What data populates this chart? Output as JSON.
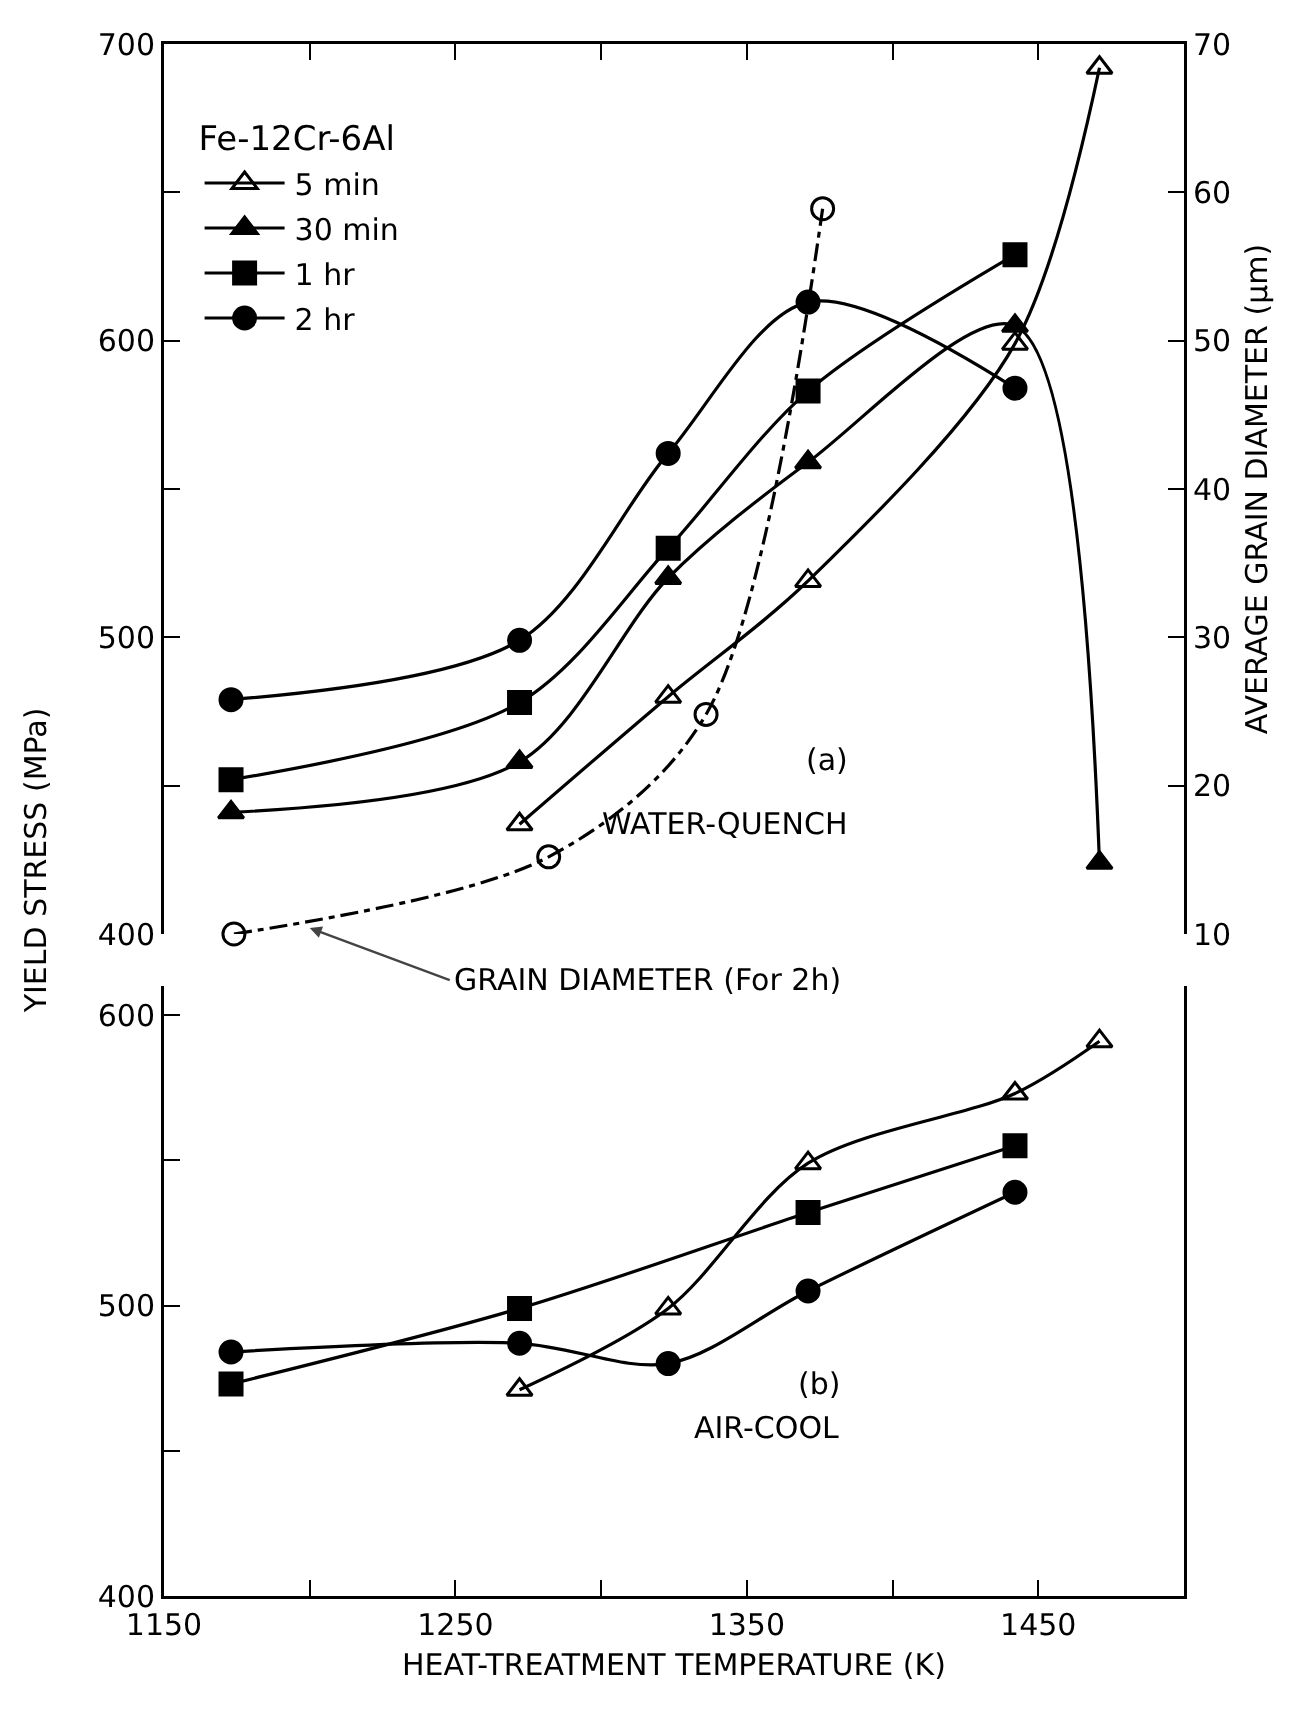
{
  "chart_data": [
    {
      "type": "line",
      "ylabel": "YIELD STRESS (MPa)",
      "y2label": "AVERAGE GRAIN DIAMETER (µm)",
      "legend_title": "Fe-12Cr-6Al",
      "legend": "top left",
      "grid": false,
      "tick_labels": "y",
      "xlim": [
        1150,
        1500
      ],
      "xticks": [
        1150,
        {
          "value": 1200,
          "label": null
        },
        1250,
        {
          "value": 1300,
          "label": null
        },
        1350,
        {
          "value": 1400,
          "label": null
        },
        1450
      ],
      "ylim": [
        400,
        700
      ],
      "yticks": [
        400,
        {
          "value": 450,
          "label": null
        },
        500,
        {
          "value": 550,
          "label": null
        },
        600,
        {
          "value": 650,
          "label": null
        },
        700
      ],
      "y2lim": [
        10,
        70
      ],
      "y2ticks": [
        10,
        20,
        30,
        40,
        50,
        60,
        70
      ],
      "annotations": [
        "(a)",
        "WATER-QUENCH",
        {
          "text": "GRAIN DIAMETER (For 2h)",
          "x": 1200,
          "y": 402
        }
      ],
      "series": [
        {
          "name": "5 min",
          "color": "#000000",
          "marker": "triangle-open",
          "line_style": "solid",
          "x": [
            1272,
            1323,
            1371,
            1442,
            1471
          ],
          "values": [
            437,
            480,
            519,
            599,
            692
          ]
        },
        {
          "name": "30 min",
          "color": "#000000",
          "marker": "triangle",
          "line_style": "solid",
          "x": [
            1173,
            1272,
            1323,
            1371,
            1442,
            1471
          ],
          "values": [
            441,
            458,
            520,
            559,
            605,
            424
          ]
        },
        {
          "name": "1 hr",
          "color": "#000000",
          "marker": "square",
          "line_style": "solid",
          "x": [
            1173,
            1272,
            1323,
            1371,
            1442
          ],
          "values": [
            452,
            478,
            530,
            583,
            629
          ]
        },
        {
          "name": "2 hr",
          "color": "#000000",
          "marker": "circle",
          "line_style": "solid",
          "x": [
            1173,
            1272,
            1323,
            1371,
            1442
          ],
          "values": [
            479,
            499,
            562,
            613,
            584
          ]
        },
        {
          "color": "#000000",
          "marker": "circle-open",
          "line_style": "dashdot",
          "axis": "y2",
          "x": [
            1174,
            1282,
            1336,
            1376
          ],
          "values": [
            10,
            15.2,
            24.8,
            58.9
          ]
        }
      ]
    },
    {
      "type": "line",
      "xlabel": "HEAT-TREATMENT TEMPERATURE (K)",
      "grid": false,
      "legend": false,
      "xlim": [
        1150,
        1500
      ],
      "xticks": [
        1150,
        {
          "value": 1200,
          "label": null
        },
        1250,
        {
          "value": 1300,
          "label": null
        },
        1350,
        {
          "value": 1400,
          "label": null
        },
        1450
      ],
      "ylim": [
        400,
        610
      ],
      "yticks": [
        400,
        {
          "value": 450,
          "label": null
        },
        500,
        {
          "value": 550,
          "label": null
        },
        600
      ],
      "annotations": [
        "(b)",
        "AIR-COOL"
      ],
      "series": [
        {
          "color": "#000000",
          "marker": "triangle-open",
          "line_style": "solid",
          "x": [
            1272,
            1323,
            1371,
            1442,
            1471
          ],
          "values": [
            471,
            499,
            549,
            573,
            591
          ]
        },
        {
          "color": "#000000",
          "marker": "square",
          "line_style": "solid",
          "x": [
            1173,
            1272,
            1371,
            1442
          ],
          "values": [
            473,
            499,
            532,
            555
          ]
        },
        {
          "color": "#000000",
          "marker": "circle",
          "line_style": "solid",
          "x": [
            1173,
            1272,
            1323,
            1371,
            1442
          ],
          "values": [
            484,
            487,
            480,
            505,
            539
          ]
        }
      ]
    }
  ]
}
